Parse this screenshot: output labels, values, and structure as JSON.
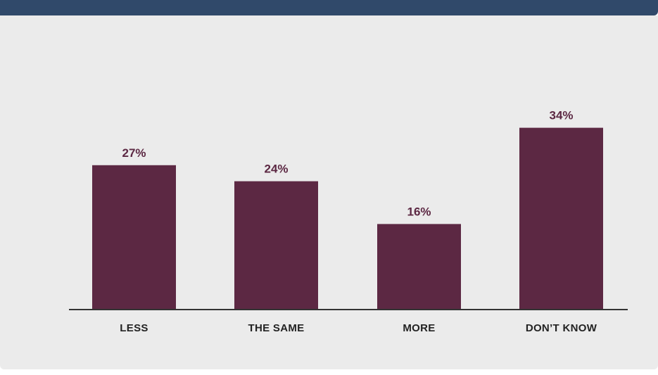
{
  "colors": {
    "header": "#30496a",
    "panel": "#ebebeb",
    "bar": "#5c2843",
    "value_label": "#5c2843",
    "category_label": "#222222",
    "axis": "#333333"
  },
  "chart_data": {
    "type": "bar",
    "categories": [
      "LESS",
      "THE SAME",
      "MORE",
      "DON’T KNOW"
    ],
    "values": [
      27,
      24,
      16,
      34
    ],
    "value_labels": [
      "27%",
      "24%",
      "16%",
      "34%"
    ],
    "ylim": [
      0,
      40
    ],
    "grid": false,
    "legend": "none"
  }
}
